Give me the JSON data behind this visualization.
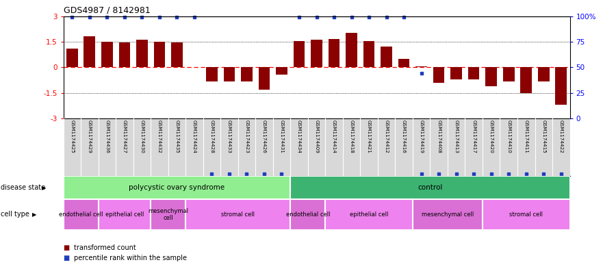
{
  "title": "GDS4987 / 8142981",
  "samples": [
    "GSM1174425",
    "GSM1174429",
    "GSM1174436",
    "GSM1174427",
    "GSM1174430",
    "GSM1174432",
    "GSM1174435",
    "GSM1174424",
    "GSM1174428",
    "GSM1174433",
    "GSM1174423",
    "GSM1174426",
    "GSM1174431",
    "GSM1174434",
    "GSM1174409",
    "GSM1174414",
    "GSM1174418",
    "GSM1174421",
    "GSM1174412",
    "GSM1174416",
    "GSM1174419",
    "GSM1174408",
    "GSM1174413",
    "GSM1174417",
    "GSM1174420",
    "GSM1174410",
    "GSM1174411",
    "GSM1174415",
    "GSM1174422"
  ],
  "bar_values": [
    1.1,
    1.8,
    1.5,
    1.45,
    1.6,
    1.5,
    1.45,
    0.02,
    -0.85,
    -0.85,
    -0.85,
    -1.3,
    -0.45,
    1.55,
    1.6,
    1.65,
    2.0,
    1.55,
    1.2,
    0.5,
    0.05,
    -0.9,
    -0.7,
    -0.7,
    -1.1,
    -0.85,
    -1.5,
    -0.85,
    -2.2
  ],
  "percentile_values_top": [
    true,
    true,
    true,
    true,
    true,
    true,
    true,
    true,
    false,
    false,
    false,
    false,
    false,
    true,
    true,
    true,
    true,
    true,
    true,
    true,
    false,
    false,
    false,
    false,
    false,
    false,
    false,
    false,
    false
  ],
  "percentile_values_mid": [
    false,
    false,
    false,
    false,
    false,
    false,
    false,
    false,
    false,
    false,
    false,
    false,
    false,
    false,
    false,
    false,
    false,
    false,
    false,
    false,
    true,
    false,
    false,
    false,
    false,
    false,
    false,
    false,
    false
  ],
  "bar_color": "#8B0000",
  "dot_color": "#1E3EBD",
  "yticks_left": [
    -3,
    -1.5,
    0,
    1.5,
    3
  ],
  "yticks_right_labels": [
    "0",
    "25",
    "50",
    "75",
    "100%"
  ],
  "disease_groups": [
    {
      "label": "polycystic ovary syndrome",
      "start": 0,
      "end": 13,
      "color": "#90EE90"
    },
    {
      "label": "control",
      "start": 13,
      "end": 29,
      "color": "#3CB371"
    }
  ],
  "cell_type_groups": [
    {
      "label": "endothelial cell",
      "start": 0,
      "end": 2,
      "color": "#DA70D6"
    },
    {
      "label": "epithelial cell",
      "start": 2,
      "end": 5,
      "color": "#EE82EE"
    },
    {
      "label": "mesenchymal\ncell",
      "start": 5,
      "end": 7,
      "color": "#DA70D6"
    },
    {
      "label": "stromal cell",
      "start": 7,
      "end": 13,
      "color": "#EE82EE"
    },
    {
      "label": "endothelial cell",
      "start": 13,
      "end": 15,
      "color": "#DA70D6"
    },
    {
      "label": "epithelial cell",
      "start": 15,
      "end": 20,
      "color": "#EE82EE"
    },
    {
      "label": "mesenchymal cell",
      "start": 20,
      "end": 24,
      "color": "#DA70D6"
    },
    {
      "label": "stromal cell",
      "start": 24,
      "end": 29,
      "color": "#EE82EE"
    }
  ],
  "disease_state_label": "disease state",
  "cell_type_label": "cell type",
  "legend_items": [
    {
      "color": "#8B0000",
      "label": "transformed count"
    },
    {
      "color": "#1E3EBD",
      "label": "percentile rank within the sample"
    }
  ]
}
